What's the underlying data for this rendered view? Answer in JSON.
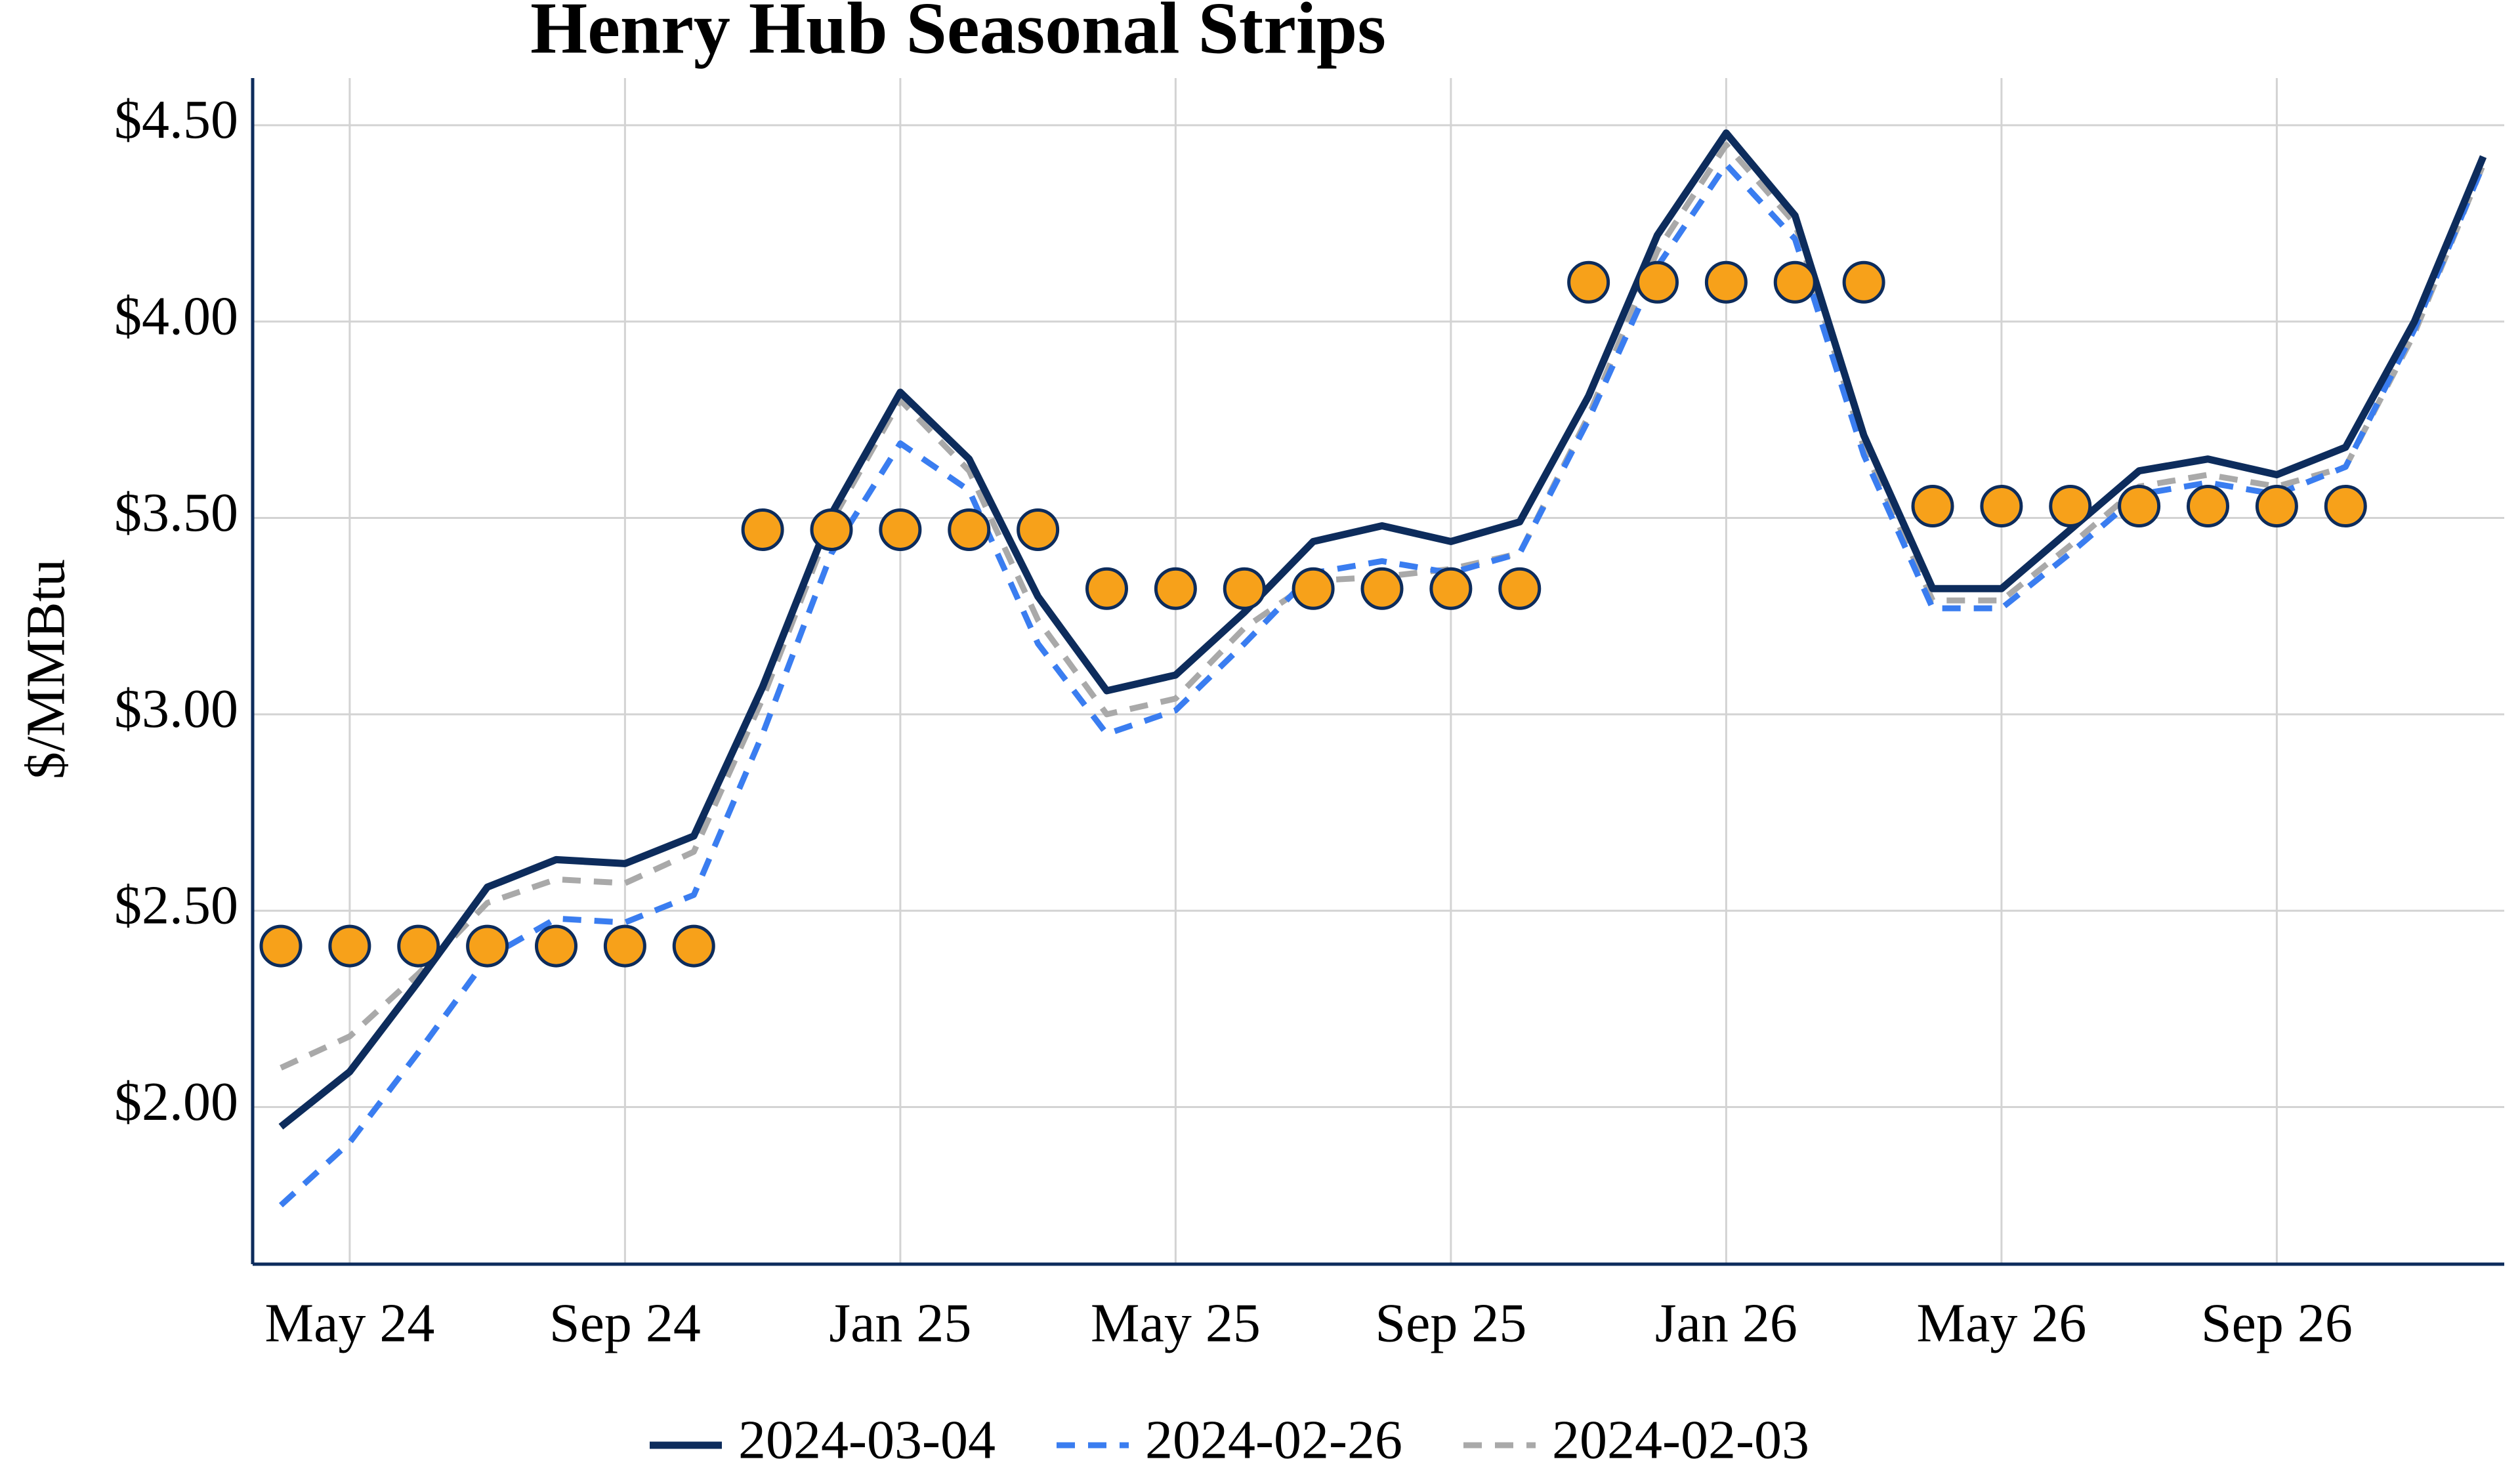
{
  "chart_data": {
    "type": "line",
    "title": "Henry Hub Seasonal Strips",
    "y_label": "$/MMBtu",
    "categories": [
      null,
      "May 24",
      null,
      null,
      null,
      "Sep 24",
      null,
      null,
      null,
      "Jan 25",
      null,
      null,
      null,
      "May 25",
      null,
      null,
      null,
      "Sep 25",
      null,
      null,
      null,
      "Jan 26",
      null,
      null,
      null,
      "May 26",
      null,
      null,
      null,
      "Sep 26",
      null,
      null,
      null
    ],
    "series": [
      {
        "name": "2024-03-04",
        "color": "#0d2c5c",
        "dash": "solid",
        "values": [
          1.95,
          2.09,
          2.32,
          2.56,
          2.63,
          2.62,
          2.69,
          3.07,
          3.51,
          3.82,
          3.65,
          3.3,
          3.06,
          3.1,
          3.26,
          3.44,
          3.48,
          3.44,
          3.49,
          3.81,
          4.22,
          4.48,
          4.27,
          3.71,
          3.32,
          3.32,
          3.47,
          3.62,
          3.65,
          3.61,
          3.68,
          4.0,
          4.42
        ]
      },
      {
        "name": "2024-02-26",
        "color": "#3a7df0",
        "dash": "dashed",
        "values": [
          1.75,
          1.91,
          2.14,
          2.38,
          2.48,
          2.47,
          2.54,
          2.95,
          3.41,
          3.69,
          3.57,
          3.18,
          2.95,
          3.01,
          3.18,
          3.36,
          3.39,
          3.36,
          3.41,
          3.75,
          4.14,
          4.4,
          4.21,
          3.66,
          3.27,
          3.27,
          3.41,
          3.56,
          3.59,
          3.56,
          3.63,
          3.98,
          4.4
        ]
      },
      {
        "name": "2024-02-03",
        "color": "#a9a9a9",
        "dash": "dashed",
        "values": [
          2.1,
          2.18,
          2.34,
          2.52,
          2.58,
          2.57,
          2.65,
          3.04,
          3.49,
          3.8,
          3.62,
          3.24,
          3.0,
          3.04,
          3.22,
          3.34,
          3.35,
          3.37,
          3.41,
          3.76,
          4.18,
          4.45,
          4.25,
          3.68,
          3.29,
          3.29,
          3.43,
          3.58,
          3.61,
          3.58,
          3.63,
          3.97,
          4.4
        ]
      }
    ],
    "strips": {
      "color": "#f7a11a",
      "edge_color": "#0d2c5c",
      "values": [
        2.41,
        2.41,
        2.41,
        2.41,
        2.41,
        2.41,
        2.41,
        3.47,
        3.47,
        3.47,
        3.47,
        3.47,
        3.32,
        3.32,
        3.32,
        3.32,
        3.32,
        3.32,
        3.32,
        4.1,
        4.1,
        4.1,
        4.1,
        4.1,
        3.53,
        3.53,
        3.53,
        3.53,
        3.53,
        3.53,
        3.53,
        null,
        null
      ]
    },
    "ylim": [
      1.6,
      4.62
    ],
    "yticks": [
      {
        "value": 2,
        "label": "$2.00"
      },
      {
        "value": 2.5,
        "label": "$2.50"
      },
      {
        "value": 3,
        "label": "$3.00"
      },
      {
        "value": 3.5,
        "label": "$3.50"
      },
      {
        "value": 4,
        "label": "$4.00"
      },
      {
        "value": 4.5,
        "label": "$4.50"
      }
    ],
    "grid": true,
    "legend": "bottom",
    "axis_color": "#0d2c5c"
  }
}
